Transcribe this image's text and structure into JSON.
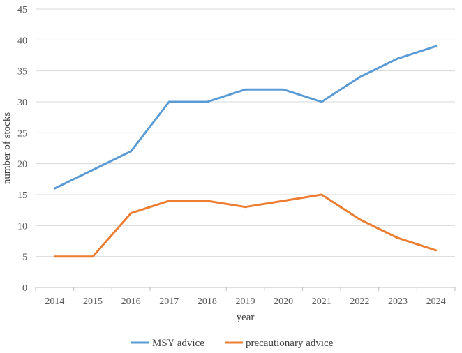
{
  "chart_data": {
    "type": "line",
    "title": "",
    "xlabel": "year",
    "ylabel": "number of stocks",
    "x": [
      2014,
      2015,
      2016,
      2017,
      2018,
      2019,
      2020,
      2021,
      2022,
      2023,
      2024
    ],
    "ylim": [
      0,
      45
    ],
    "yticks": [
      0,
      5,
      10,
      15,
      20,
      25,
      30,
      35,
      40,
      45
    ],
    "grid": true,
    "legend_position": "bottom",
    "series": [
      {
        "name": "MSY advice",
        "color": "#5b9bd5",
        "values": [
          16,
          19,
          22,
          30,
          30,
          32,
          32,
          30,
          34,
          37,
          39
        ]
      },
      {
        "name": "precautionary advice",
        "color": "#ed7d31",
        "values": [
          5,
          5,
          12,
          14,
          14,
          13,
          14,
          15,
          11,
          8,
          6
        ]
      }
    ]
  }
}
